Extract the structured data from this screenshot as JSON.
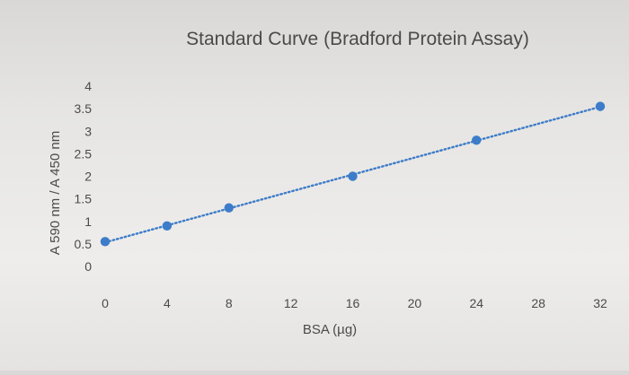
{
  "chart_data": {
    "type": "scatter",
    "title": "Standard Curve (Bradford Protein Assay)",
    "xlabel": "BSA (µg)",
    "ylabel": "A 590 nm / A 450 nm",
    "xlim": [
      0,
      32
    ],
    "ylim": [
      0,
      4
    ],
    "xticks": [
      0,
      4,
      8,
      12,
      16,
      20,
      24,
      28,
      32
    ],
    "yticks": [
      0,
      0.5,
      1,
      1.5,
      2,
      2.5,
      3,
      3.5,
      4
    ],
    "grid": false,
    "trendline": "linear dotted",
    "marker_color": "#3d7cc9",
    "series": [
      {
        "x": [
          0,
          4,
          8,
          16,
          24,
          32
        ],
        "y": [
          0.55,
          0.9,
          1.3,
          2.0,
          2.8,
          3.55
        ]
      }
    ]
  }
}
